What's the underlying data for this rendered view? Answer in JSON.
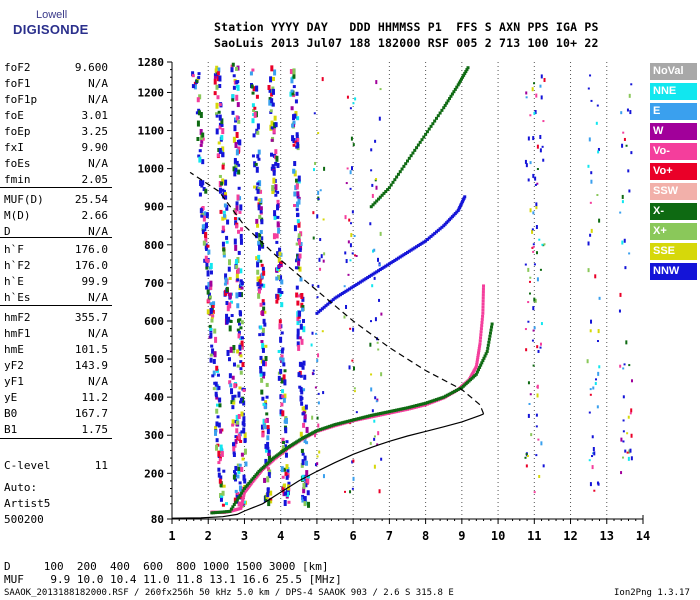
{
  "logo": {
    "line1": "Lowell",
    "line2": "DIGISONDE"
  },
  "header": {
    "line1": "Station YYYY DAY   DDD HHMMSS P1  FFS S AXN PPS IGA PS",
    "line2": "SaoLuis 2013 Jul07 188 182000 RSF 005 2 713 100 10+ 22"
  },
  "params": [
    {
      "k": "foF2",
      "v": "9.600"
    },
    {
      "k": "foF1",
      "v": "N/A"
    },
    {
      "k": "foF1p",
      "v": "N/A"
    },
    {
      "k": "foE",
      "v": "3.01"
    },
    {
      "k": "foEp",
      "v": "3.25"
    },
    {
      "k": "fxI",
      "v": "9.90"
    },
    {
      "k": "foEs",
      "v": "N/A"
    },
    {
      "k": "fmin",
      "v": "2.05"
    },
    {
      "k": "MUF(D)",
      "v": "25.54"
    },
    {
      "k": "M(D)",
      "v": "2.66"
    },
    {
      "k": "D",
      "v": "N/A"
    },
    {
      "k": "h`F",
      "v": "176.0"
    },
    {
      "k": "h`F2",
      "v": "176.0"
    },
    {
      "k": "h`E",
      "v": "99.9"
    },
    {
      "k": "h`Es",
      "v": "N/A"
    },
    {
      "k": "hmF2",
      "v": "355.7"
    },
    {
      "k": "hmF1",
      "v": "N/A"
    },
    {
      "k": "hmE",
      "v": "101.5"
    },
    {
      "k": "yF2",
      "v": "143.9"
    },
    {
      "k": "yF1",
      "v": "N/A"
    },
    {
      "k": "yE",
      "v": "11.2"
    },
    {
      "k": "B0",
      "v": "167.7"
    },
    {
      "k": "B1",
      "v": "1.75"
    },
    {
      "k": "C-level",
      "v": "11"
    }
  ],
  "auto": {
    "label": "Auto:",
    "artist": "Artist5",
    "version": "500200"
  },
  "legend": [
    {
      "label": "NoVal",
      "color": "#a8a8a8"
    },
    {
      "label": "NNE",
      "color": "#11e7ef"
    },
    {
      "label": "E",
      "color": "#3aa0ee"
    },
    {
      "label": "W",
      "color": "#a1009a"
    },
    {
      "label": "Vo-",
      "color": "#f43e9c"
    },
    {
      "label": "Vo+",
      "color": "#ea0028"
    },
    {
      "label": "SSW",
      "color": "#f2b0aa"
    },
    {
      "label": "X-",
      "color": "#0e6a12"
    },
    {
      "label": "X+",
      "color": "#8ac85a"
    },
    {
      "label": "SSE",
      "color": "#d6d80a"
    },
    {
      "label": "NNW",
      "color": "#1414d8"
    }
  ],
  "bottom": {
    "d_row": "D     100  200  400  600  800 1000 1500 3000 [km]",
    "muf_row": "MUF    9.9 10.0 10.4 11.0 11.8 13.1 16.6 25.5 [MHz]"
  },
  "footer": {
    "left": "SAAOK_2013188182000.RSF / 260fx256h 50 kHz 5.0 km / DPS-4 SAAOK 903 / 2.6 S 315.8 E",
    "right": "Ion2Png 1.3.17"
  },
  "chart_data": {
    "type": "scatter",
    "xlim": [
      1,
      14
    ],
    "ylim": [
      80,
      1280
    ],
    "x_ticks": [
      "1",
      "2",
      "3",
      "4",
      "5",
      "6",
      "7",
      "8",
      "9",
      "10",
      "11",
      "12",
      "13",
      "14"
    ],
    "y_ticks": [
      "80",
      "200",
      "300",
      "400",
      "500",
      "600",
      "700",
      "800",
      "900",
      "1000",
      "1100",
      "1200",
      "1280"
    ],
    "grid": "vertical dotted at integer frequencies",
    "series": [
      {
        "kind": "ordinary-trace",
        "color": "#f43e9c",
        "points": [
          [
            2.1,
            98
          ],
          [
            2.4,
            97
          ],
          [
            2.6,
            100
          ],
          [
            2.9,
            108
          ],
          [
            3.0,
            150
          ],
          [
            3.2,
            175
          ],
          [
            3.5,
            210
          ],
          [
            3.8,
            235
          ],
          [
            4.2,
            265
          ],
          [
            4.6,
            290
          ],
          [
            5.0,
            310
          ],
          [
            5.5,
            325
          ],
          [
            6.0,
            338
          ],
          [
            6.5,
            348
          ],
          [
            7.0,
            358
          ],
          [
            7.5,
            368
          ],
          [
            8.0,
            380
          ],
          [
            8.5,
            398
          ],
          [
            8.9,
            420
          ],
          [
            9.2,
            445
          ],
          [
            9.4,
            480
          ],
          [
            9.5,
            540
          ],
          [
            9.58,
            620
          ],
          [
            9.6,
            700
          ]
        ]
      },
      {
        "kind": "extraordinary-trace",
        "color": "#0e6a12",
        "points": [
          [
            2.1,
            96
          ],
          [
            2.6,
            100
          ],
          [
            3.0,
            160
          ],
          [
            3.4,
            205
          ],
          [
            3.8,
            240
          ],
          [
            4.2,
            268
          ],
          [
            4.6,
            292
          ],
          [
            5.0,
            312
          ],
          [
            5.5,
            328
          ],
          [
            6.0,
            340
          ],
          [
            6.5,
            352
          ],
          [
            7.0,
            362
          ],
          [
            7.5,
            372
          ],
          [
            8.0,
            384
          ],
          [
            8.5,
            400
          ],
          [
            9.0,
            425
          ],
          [
            9.4,
            460
          ],
          [
            9.7,
            520
          ],
          [
            9.85,
            600
          ]
        ]
      },
      {
        "kind": "multiple-hop",
        "color": "#1414d8",
        "points": [
          [
            5.0,
            620
          ],
          [
            5.5,
            660
          ],
          [
            6.0,
            690
          ],
          [
            6.5,
            720
          ],
          [
            7.0,
            750
          ],
          [
            7.5,
            780
          ],
          [
            8.0,
            810
          ],
          [
            8.5,
            850
          ],
          [
            8.9,
            890
          ],
          [
            9.1,
            930
          ]
        ]
      },
      {
        "kind": "multiple-hop-2",
        "color": "#0e6a12",
        "points": [
          [
            6.5,
            900
          ],
          [
            7.0,
            950
          ],
          [
            7.5,
            1020
          ],
          [
            8.0,
            1090
          ],
          [
            8.5,
            1160
          ],
          [
            8.9,
            1220
          ],
          [
            9.2,
            1270
          ]
        ]
      }
    ],
    "profile": {
      "kind": "electron-density-profile",
      "color": "#000",
      "points": [
        [
          1.0,
          82
        ],
        [
          1.8,
          83
        ],
        [
          2.4,
          86
        ],
        [
          2.8,
          92
        ],
        [
          3.0,
          101
        ],
        [
          3.5,
          120
        ],
        [
          4.0,
          150
        ],
        [
          4.5,
          180
        ],
        [
          5.0,
          205
        ],
        [
          5.5,
          228
        ],
        [
          6.0,
          250
        ],
        [
          6.5,
          268
        ],
        [
          7.0,
          284
        ],
        [
          7.5,
          298
        ],
        [
          8.0,
          310
        ],
        [
          8.5,
          322
        ],
        [
          9.0,
          335
        ],
        [
          9.3,
          345
        ],
        [
          9.5,
          352
        ],
        [
          9.6,
          356
        ]
      ]
    },
    "profile_extension": {
      "kind": "topside-extension",
      "style": "dashed",
      "points": [
        [
          9.6,
          356
        ],
        [
          9.5,
          380
        ],
        [
          9.0,
          420
        ],
        [
          8.0,
          470
        ],
        [
          7.0,
          530
        ],
        [
          6.0,
          600
        ],
        [
          5.0,
          680
        ],
        [
          4.0,
          760
        ],
        [
          3.0,
          850
        ],
        [
          2.3,
          940
        ],
        [
          1.5,
          990
        ]
      ]
    }
  }
}
